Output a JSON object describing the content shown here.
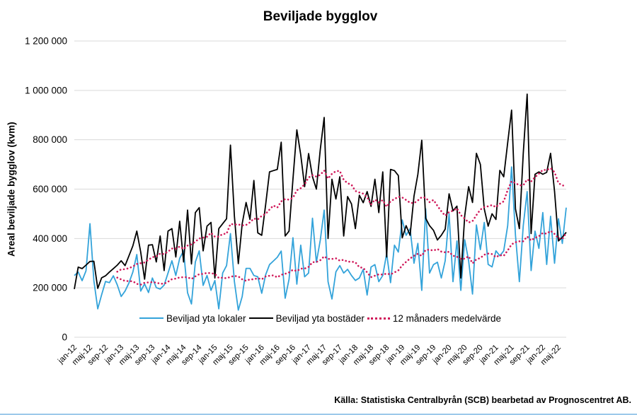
{
  "title": "Beviljade bygglov",
  "source": "Källa: Statistiska Centralbyrån (SCB) bearbetad av Prognoscentret AB.",
  "y_axis": {
    "title": "Areal beviljade bygglov (kvm)",
    "tick_labels": [
      "0",
      "200 000",
      "400 000",
      "600 000",
      "800 000",
      "1 000 000",
      "1 200 000"
    ]
  },
  "legend": {
    "items": [
      {
        "label": "Beviljad yta lokaler",
        "color": "#33a3da",
        "style": "solid"
      },
      {
        "label": "Beviljad yta bostäder",
        "color": "#000000",
        "style": "solid"
      },
      {
        "label": "12 månaders medelvärde",
        "color": "#d0195a",
        "style": "dotted"
      }
    ]
  },
  "chart_data": {
    "type": "line",
    "title": "Beviljade bygglov",
    "ylabel": "Areal beviljade bygglov (kvm)",
    "ylim": [
      0,
      1200000
    ],
    "y_tick_step": 200000,
    "grid": true,
    "grid_color": "#d9d9d9",
    "x_start": "jan-12",
    "x_end": "jul-22",
    "x_tick_every": 4,
    "x_tick_labels": [
      "jan-12",
      "maj-12",
      "sep-12",
      "jan-13",
      "maj-13",
      "sep-13",
      "jan-14",
      "maj-14",
      "sep-14",
      "jan-15",
      "maj-15",
      "sep-15",
      "jan-16",
      "maj-16",
      "sep-16",
      "jan-17",
      "maj-17",
      "sep-17",
      "jan-18",
      "maj-18",
      "sep-18",
      "jan-19",
      "maj-19",
      "sep-19",
      "jan-20",
      "maj-20",
      "sep-20",
      "jan-21",
      "maj-21",
      "sep-21",
      "jan-22",
      "maj-22"
    ],
    "series": [
      {
        "name": "Beviljad yta lokaler",
        "color": "#33a3da",
        "values": [
          250000,
          264000,
          229000,
          269000,
          460000,
          230000,
          115000,
          172000,
          226000,
          221000,
          249000,
          212000,
          165000,
          187000,
          220000,
          264000,
          335000,
          187000,
          216000,
          181000,
          240000,
          201000,
          195000,
          211000,
          260000,
          310000,
          250000,
          320000,
          350000,
          180000,
          135000,
          305000,
          350000,
          210000,
          250000,
          190000,
          230000,
          115000,
          260000,
          290000,
          420000,
          225000,
          110000,
          165000,
          279000,
          279000,
          250000,
          245000,
          178000,
          253000,
          294000,
          309000,
          324000,
          349000,
          158000,
          235000,
          403000,
          215000,
          373000,
          245000,
          260000,
          482000,
          304000,
          393000,
          515000,
          225000,
          155000,
          265000,
          290000,
          260000,
          275000,
          250000,
          230000,
          240000,
          275000,
          171000,
          284000,
          294000,
          225000,
          250000,
          339000,
          221000,
          373000,
          345000,
          475000,
          413000,
          440000,
          300000,
          380000,
          190000,
          520000,
          260000,
          294000,
          304000,
          240000,
          310000,
          500000,
          225000,
          390000,
          190000,
          395000,
          310000,
          175000,
          455000,
          355000,
          465000,
          295000,
          285000,
          350000,
          330000,
          350000,
          452000,
          690000,
          413000,
          225000,
          452000,
          590000,
          270000,
          430000,
          360000,
          505000,
          295000,
          490000,
          300000,
          480000,
          380000,
          525000
        ]
      },
      {
        "name": "Beviljad yta bostäder",
        "color": "#000000",
        "values": [
          195000,
          284000,
          278000,
          292000,
          307000,
          308000,
          198000,
          241000,
          249000,
          264000,
          278000,
          292000,
          310000,
          290000,
          330000,
          370000,
          430000,
          345000,
          235000,
          373000,
          375000,
          305000,
          410000,
          270000,
          430000,
          440000,
          325000,
          470000,
          305000,
          515000,
          297000,
          505000,
          525000,
          350000,
          450000,
          465000,
          240000,
          440000,
          460000,
          480000,
          778000,
          490000,
          298000,
          460000,
          546000,
          477000,
          635000,
          423000,
          413000,
          536000,
          670000,
          675000,
          680000,
          790000,
          410000,
          430000,
          640000,
          840000,
          739000,
          610000,
          744000,
          650000,
          600000,
          760000,
          890000,
          400000,
          640000,
          560000,
          650000,
          410000,
          570000,
          540000,
          440000,
          575000,
          545000,
          590000,
          530000,
          640000,
          505000,
          670000,
          325000,
          680000,
          675000,
          655000,
          403000,
          452000,
          413000,
          571000,
          660000,
          798000,
          482000,
          452000,
          433000,
          394000,
          413000,
          438000,
          581000,
          512000,
          531000,
          240000,
          492000,
          610000,
          546000,
          745000,
          700000,
          520000,
          450000,
          500000,
          477000,
          676000,
          650000,
          788000,
          920000,
          520000,
          440000,
          745000,
          985000,
          420000,
          660000,
          670000,
          660000,
          668000,
          745000,
          591000,
          390000,
          405000,
          425000
        ]
      }
    ],
    "moving_average": {
      "window": 12,
      "label": "12 månaders medelvärde",
      "color": "#d0195a",
      "applies_to": [
        "Beviljad yta lokaler",
        "Beviljad yta bostäder"
      ]
    }
  }
}
